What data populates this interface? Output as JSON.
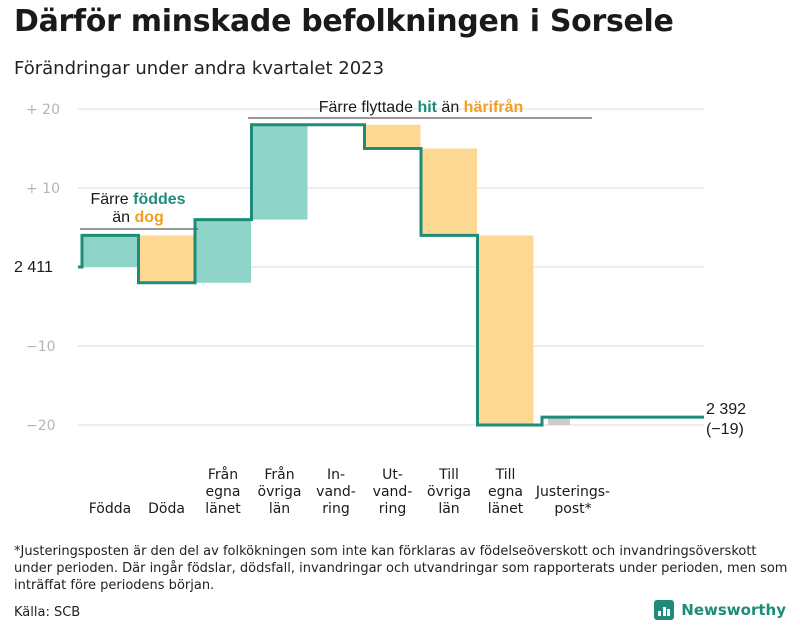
{
  "title": "Därför minskade befolkningen i Sorsele",
  "subtitle": "Förändringar under andra kvartalet 2023",
  "footnote": "*Justeringsposten är den del av folkökningen som inte kan förklaras av födelseöverskott och invandringsöverskott under perioden. Där ingår födslar, dödsfall, invandringar och utvandringar som rapporterats under perioden, men som inträffat före periodens början.",
  "source": "Källa: SCB",
  "brand": "Newsworthy",
  "colors": {
    "increase": "#8fd4c9",
    "decrease": "#fcd893",
    "adjustment": "#cccccc",
    "line": "#1e8c78",
    "accent_orange": "#f0a020",
    "grid": "#dddddd"
  },
  "annotations": {
    "born": {
      "line1_pre": "Färre ",
      "line1_bold": "föddes",
      "line2_pre": "än ",
      "line2_bold": "dog"
    },
    "moved": {
      "pre": "Färre flyttade ",
      "bold1": "hit",
      "mid": " än ",
      "bold2": "härifrån"
    }
  },
  "chart_data": {
    "type": "waterfall",
    "title": "Därför minskade befolkningen i Sorsele",
    "subtitle": "Förändringar under andra kvartalet 2023",
    "baseline": 2411,
    "start_label": "2 411",
    "end_label": "2 392",
    "end_change_label": "(−19)",
    "ylim": [
      -22,
      21
    ],
    "y_ticks": [
      {
        "value": 20,
        "label": "+  20"
      },
      {
        "value": 10,
        "label": "+  10"
      },
      {
        "value": -10,
        "label": "−10"
      },
      {
        "value": -20,
        "label": "−20"
      }
    ],
    "categories": [
      {
        "lines": [
          "Födda"
        ],
        "value": 4,
        "kind": "increase"
      },
      {
        "lines": [
          "Döda"
        ],
        "value": -6,
        "kind": "decrease"
      },
      {
        "lines": [
          "Från",
          "egna",
          "länet"
        ],
        "value": 8,
        "kind": "increase"
      },
      {
        "lines": [
          "Från",
          "övriga",
          "län"
        ],
        "value": 12,
        "kind": "increase"
      },
      {
        "lines": [
          "In-",
          "vand-",
          "ring"
        ],
        "value": 0,
        "kind": "increase"
      },
      {
        "lines": [
          "Ut-",
          "vand-",
          "ring"
        ],
        "value": -3,
        "kind": "decrease"
      },
      {
        "lines": [
          "Till",
          "övriga",
          "län"
        ],
        "value": -11,
        "kind": "decrease"
      },
      {
        "lines": [
          "Till",
          "egna",
          "länet"
        ],
        "value": -24,
        "kind": "decrease"
      },
      {
        "lines": [
          "Justerings-",
          "post*"
        ],
        "value": 1,
        "kind": "adjustment"
      }
    ],
    "final_change": -19
  }
}
